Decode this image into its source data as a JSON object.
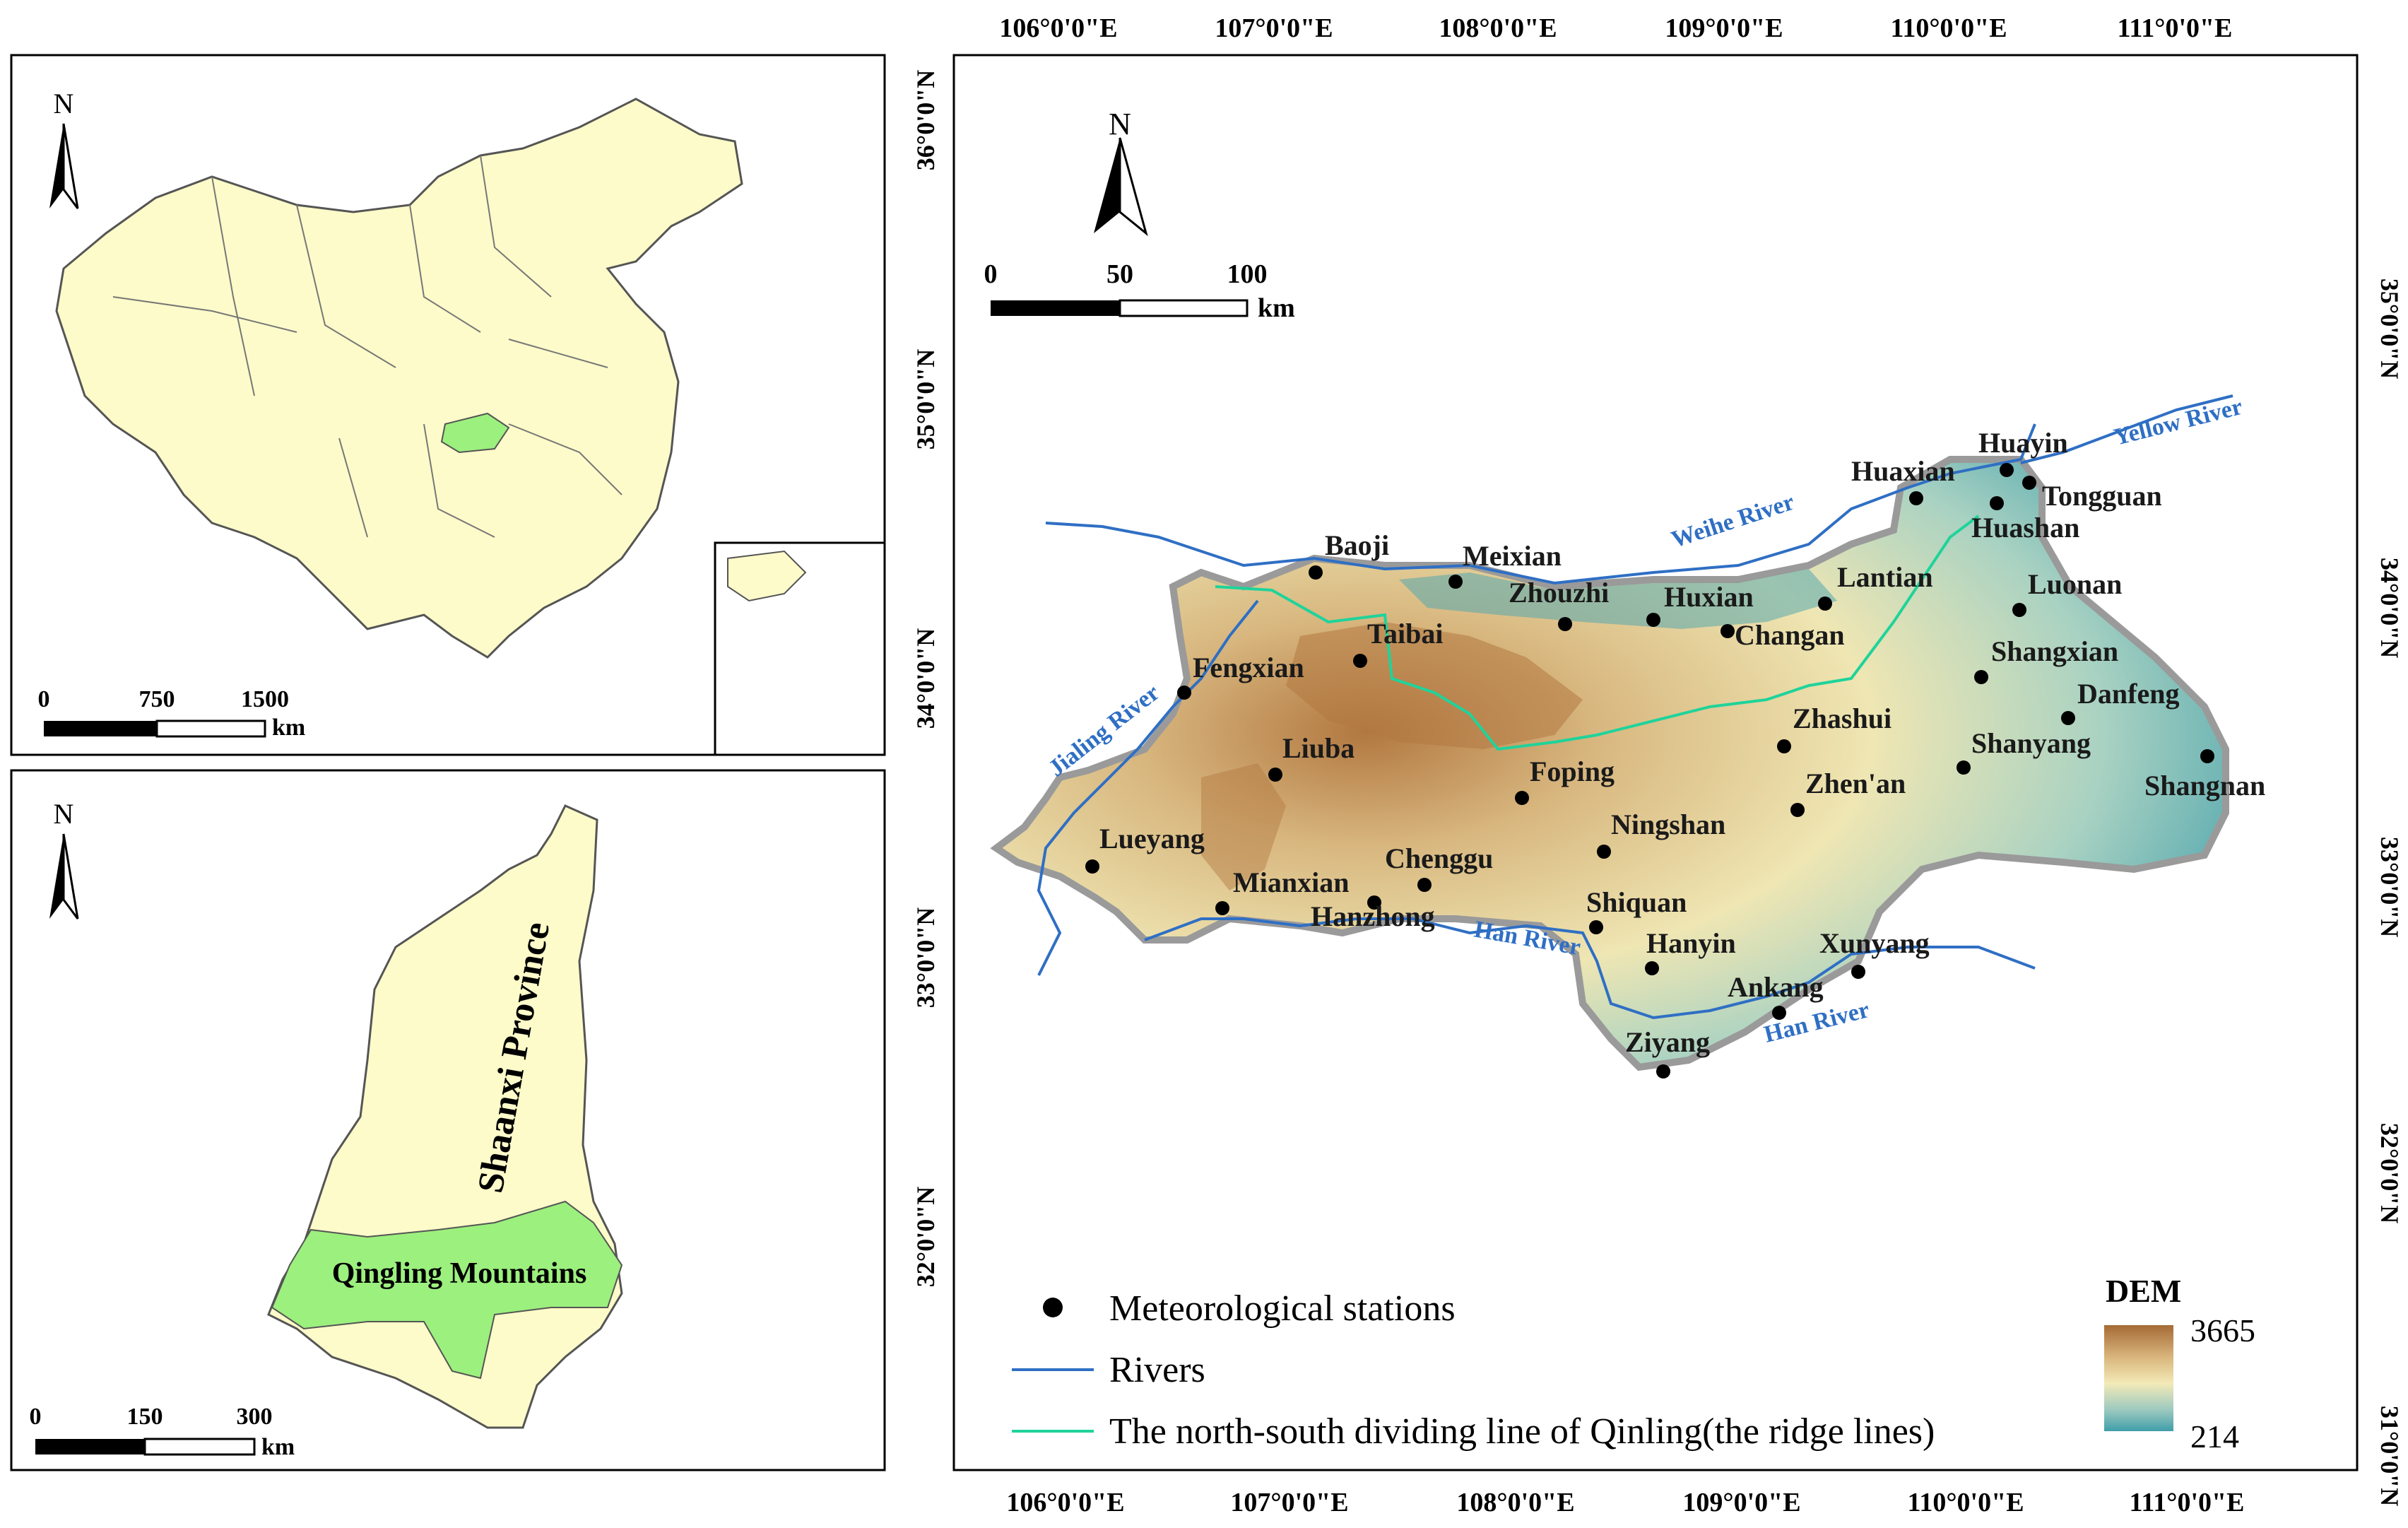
{
  "inset_china": {
    "north_label": "N",
    "scale_ticks": [
      "0",
      "750",
      "1500"
    ],
    "scale_unit": "km"
  },
  "inset_shaanxi": {
    "north_label": "N",
    "province_label": "Shaanxi Province",
    "region_label": "Qingling Mountains",
    "scale_ticks": [
      "0",
      "150",
      "300"
    ],
    "scale_unit": "km"
  },
  "main_map": {
    "north_label": "N",
    "scale_ticks": [
      "0",
      "50",
      "100"
    ],
    "scale_unit": "km",
    "lon_labels": [
      "106°0'0\"E",
      "107°0'0\"E",
      "108°0'0\"E",
      "109°0'0\"E",
      "110°0'0\"E",
      "111°0'0\"E"
    ],
    "lat_labels": [
      "36°0'0\"N",
      "35°0'0\"N",
      "34°0'0\"N",
      "33°0'0\"N",
      "32°0'0\"N",
      "31°0'0\"N"
    ],
    "rivers": [
      "Yellow River",
      "Weihe River",
      "Jialing River",
      "Han River",
      "Han River"
    ],
    "stations": [
      "Huayin",
      "Huaxian",
      "Tongguan",
      "Huashan",
      "Baoji",
      "Meixian",
      "Zhouzhi",
      "Huxian",
      "Lantian",
      "Luonan",
      "Changan",
      "Taibai",
      "Fengxian",
      "Shangxian",
      "Danfeng",
      "Zhashui",
      "Shanyang",
      "Liuba",
      "Foping",
      "Zhen'an",
      "Shangnan",
      "Ningshan",
      "Lueyang",
      "Chenggu",
      "Mianxian",
      "Hanzhong",
      "Shiquan",
      "Hanyin",
      "Xunyang",
      "Ankang",
      "Ziyang"
    ]
  },
  "legend": {
    "stations_label": "Meteorological stations",
    "rivers_label": "Rivers",
    "ridge_label": "The north-south dividing line of Qinling(the ridge lines)"
  },
  "dem": {
    "title": "DEM",
    "max": "3665",
    "min": "214",
    "colors": [
      "#a56a35",
      "#d9b57c",
      "#f3eab7",
      "#9cc9bf",
      "#3f9eaa"
    ]
  },
  "colors": {
    "land": "#fdfbc9",
    "region": "#9cf07e",
    "river": "#2f6fc4",
    "ridge": "#1fd39a"
  }
}
